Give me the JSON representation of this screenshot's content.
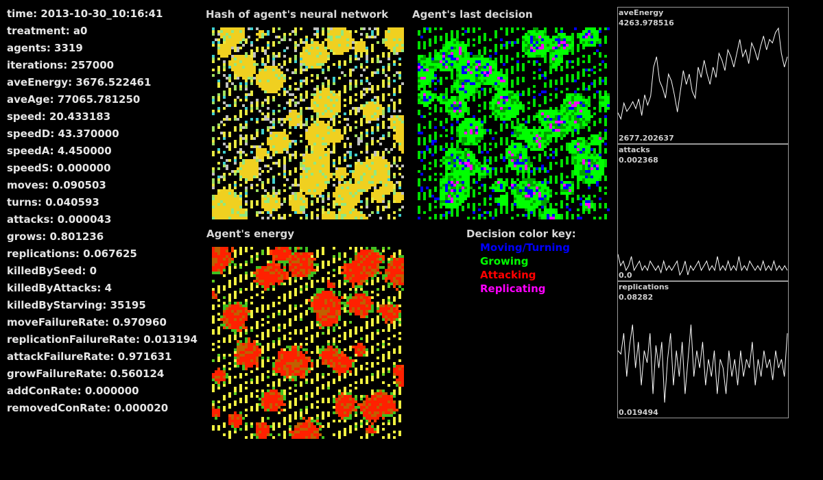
{
  "stats": [
    {
      "name": "time",
      "value": "2013-10-30_10:16:41"
    },
    {
      "name": "treatment",
      "value": "a0"
    },
    {
      "name": "agents",
      "value": "3319"
    },
    {
      "name": "iterations",
      "value": "257000"
    },
    {
      "name": "aveEnergy",
      "value": "3676.522461"
    },
    {
      "name": "aveAge",
      "value": "77065.781250"
    },
    {
      "name": "speed",
      "value": "20.433183"
    },
    {
      "name": "speedD",
      "value": "43.370000"
    },
    {
      "name": "speedA",
      "value": "4.450000"
    },
    {
      "name": "speedS",
      "value": "0.000000"
    },
    {
      "name": "moves",
      "value": "0.090503"
    },
    {
      "name": "turns",
      "value": "0.040593"
    },
    {
      "name": "attacks",
      "value": "0.000043"
    },
    {
      "name": "grows",
      "value": "0.801236"
    },
    {
      "name": "replications",
      "value": "0.067625"
    },
    {
      "name": "killedBySeed",
      "value": "0"
    },
    {
      "name": "killedByAttacks",
      "value": "4"
    },
    {
      "name": "killedByStarving",
      "value": "35195"
    },
    {
      "name": "moveFailureRate",
      "value": "0.970960"
    },
    {
      "name": "replicationFailureRate",
      "value": "0.013194"
    },
    {
      "name": "attackFailureRate",
      "value": "0.971631"
    },
    {
      "name": "growFailureRate",
      "value": "0.560124"
    },
    {
      "name": "addConRate",
      "value": "0.000000"
    },
    {
      "name": "removedConRate",
      "value": "0.000020"
    }
  ],
  "panels": {
    "hash_title": "Hash of agent's neural network",
    "decision_title": "Agent's last decision",
    "energy_title": "Agent's energy"
  },
  "key": {
    "title": "Decision color key:",
    "items": [
      {
        "label": "Moving/Turning",
        "color": "#0000ff"
      },
      {
        "label": "Growing",
        "color": "#00ff00"
      },
      {
        "label": "Attacking",
        "color": "#ff0000"
      },
      {
        "label": "Replicating",
        "color": "#ff00ff"
      }
    ]
  },
  "chart_data": [
    {
      "type": "line",
      "title": "aveEnergy",
      "ymax_label": "4263.978516",
      "ymin_label": "2677.202637",
      "ylim": [
        2677.202637,
        4263.978516
      ],
      "values": [
        3040,
        2950,
        3180,
        3060,
        3120,
        3200,
        3100,
        3240,
        3000,
        3300,
        3150,
        3280,
        3700,
        3850,
        3500,
        3400,
        3250,
        3600,
        3500,
        3300,
        3050,
        3350,
        3650,
        3450,
        3600,
        3350,
        3250,
        3700,
        3550,
        3800,
        3600,
        3450,
        3700,
        3550,
        3900,
        3800,
        3650,
        3950,
        3850,
        3700,
        3900,
        4100,
        3850,
        3950,
        3750,
        4050,
        3950,
        3800,
        4000,
        4150,
        3950,
        4100,
        4050,
        4200,
        4263,
        3900,
        3700,
        3850
      ]
    },
    {
      "type": "line",
      "title": "attacks",
      "ymax_label": "0.002368",
      "ymin_label": "0.0",
      "ylim": [
        0,
        0.002368
      ],
      "values": [
        0.00045,
        0.0002,
        0.0003,
        0.0001,
        0.0002,
        0.0004,
        0.0001,
        0.0002,
        0.0003,
        0.0001,
        0.0002,
        0.0001,
        0.0003,
        0.0002,
        0.0001,
        0.0002,
        5e-05,
        0.0003,
        0.0001,
        0.0002,
        0.0001,
        0.0002,
        0.0003,
        0.0,
        0.0001,
        0.0003,
        0.0,
        0.0002,
        0.0001,
        0.0002,
        0.0003,
        0.0001,
        0.0002,
        0.0003,
        0.0001,
        0.0002,
        0.0001,
        0.0004,
        0.0001,
        0.0002,
        0.0001,
        0.0003,
        0.0001,
        0.0002,
        0.0001,
        0.0004,
        0.0001,
        0.0002,
        0.0001,
        0.0003,
        0.0002,
        0.0001,
        0.0002,
        0.0001,
        0.0003,
        0.0001,
        0.0002,
        0.0001,
        0.0003,
        0.0001,
        0.0002,
        0.0001,
        0.0002,
        0.0001
      ]
    },
    {
      "type": "line",
      "title": "replications",
      "ymax_label": "0.08282",
      "ymin_label": "0.019494",
      "ylim": [
        0.019494,
        0.08282
      ],
      "values": [
        0.055,
        0.053,
        0.065,
        0.04,
        0.058,
        0.07,
        0.045,
        0.06,
        0.035,
        0.055,
        0.048,
        0.065,
        0.03,
        0.058,
        0.045,
        0.06,
        0.025,
        0.05,
        0.065,
        0.035,
        0.055,
        0.04,
        0.06,
        0.03,
        0.05,
        0.07,
        0.04,
        0.055,
        0.045,
        0.06,
        0.035,
        0.05,
        0.04,
        0.055,
        0.03,
        0.05,
        0.045,
        0.03,
        0.055,
        0.04,
        0.05,
        0.035,
        0.055,
        0.04,
        0.05,
        0.045,
        0.06,
        0.035,
        0.05,
        0.04,
        0.055,
        0.045,
        0.05,
        0.038,
        0.055,
        0.045,
        0.05,
        0.04,
        0.065
      ]
    }
  ]
}
